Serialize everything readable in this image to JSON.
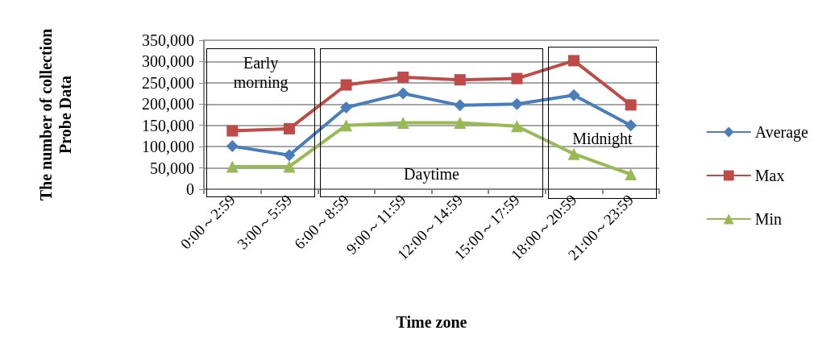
{
  "chart_data": {
    "type": "line",
    "xlabel": "Time zone",
    "ylabel": "The number of collection\nProbe Data",
    "categories": [
      "0:00～2:59",
      "3:00～5:59",
      "6:00～8:59",
      "9:00～11:59",
      "12:00～14:59",
      "15:00～17:59",
      "18:00～20:59",
      "21:00～23:59"
    ],
    "series": [
      {
        "name": "Average",
        "color": "#4a7ebb",
        "marker": "diamond",
        "values": [
          101000,
          80000,
          192000,
          225000,
          197000,
          200000,
          221000,
          150000
        ]
      },
      {
        "name": "Max",
        "color": "#be4b48",
        "marker": "square",
        "values": [
          137000,
          142000,
          245000,
          263000,
          257000,
          260000,
          302000,
          198000
        ]
      },
      {
        "name": "Min",
        "color": "#98b954",
        "marker": "triangle",
        "values": [
          53000,
          53000,
          150000,
          156000,
          156000,
          148000,
          83000,
          35000
        ]
      }
    ],
    "ylim": [
      0,
      350000
    ],
    "yticks": [
      0,
      {
        "value": 50000,
        "label": "50,000"
      },
      {
        "value": 100000,
        "label": "100,000"
      },
      {
        "value": 150000,
        "label": "150,000"
      },
      {
        "value": 200000,
        "label": "200,000"
      },
      {
        "value": 250000,
        "label": "250,000"
      },
      {
        "value": 300000,
        "label": "300,000"
      },
      {
        "value": 350000,
        "label": "350,000"
      }
    ],
    "grid": "y",
    "legend": "right",
    "annotations": [
      "Early\nmorning",
      "Daytime",
      "Midnight"
    ]
  }
}
